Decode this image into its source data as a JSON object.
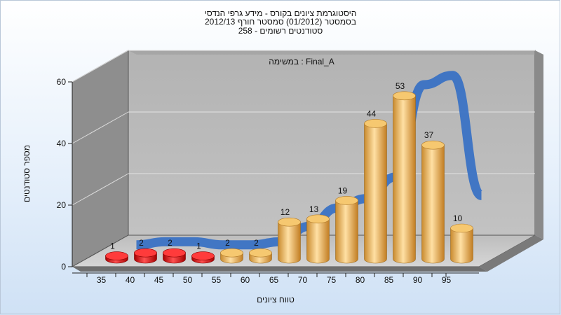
{
  "chart_data": {
    "type": "bar",
    "title": [
      "היסטוגרמת ציונים בקורס - מידע גרפי הנדסי",
      "בסמסטר  (01/2012)  סמסטר חורף 2012/13",
      "סטודנטים רשומים - 258"
    ],
    "subtitle": "במשימה : Final_A",
    "xlabel": "טווח ציונים",
    "ylabel": "מספר סטודנטים",
    "categories": [
      "35",
      "40",
      "45",
      "50",
      "55",
      "60",
      "65",
      "70",
      "75",
      "80",
      "85",
      "90",
      "95"
    ],
    "values": [
      1,
      2,
      2,
      1,
      2,
      2,
      12,
      13,
      19,
      44,
      53,
      37,
      10
    ],
    "y_ticks": [
      0,
      20,
      40,
      60
    ],
    "ylim": [
      0,
      60
    ],
    "curve": [
      3,
      4,
      4,
      3,
      3,
      4,
      9,
      15,
      18,
      25,
      55,
      58,
      19
    ],
    "colors": {
      "low": "#e01010",
      "high": "#f0b050",
      "curve": "#3a72c4"
    }
  }
}
